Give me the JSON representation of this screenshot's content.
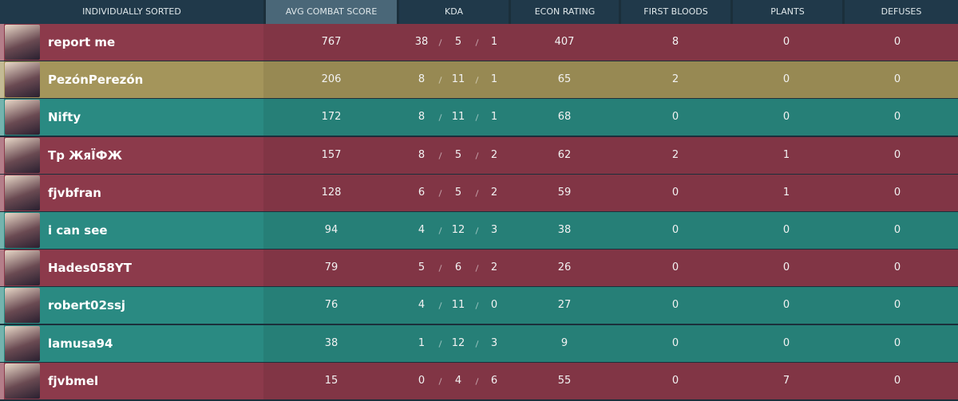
{
  "header": [
    "INDIVIDUALLY SORTED",
    "AVG COMBAT SCORE",
    "KDA",
    "ECON RATING",
    "FIRST BLOODS",
    "PLANTS",
    "DEFUSES"
  ],
  "rows": [
    {
      "player": "report me",
      "acs": 767,
      "kills": 38,
      "deaths": 5,
      "assists": 1,
      "econ": 407,
      "first_bloods": 8,
      "plants": 0,
      "defuses": 0,
      "color": "#8c3a4b"
    },
    {
      "player": "PezónPerezón",
      "acs": 206,
      "kills": 8,
      "deaths": 11,
      "assists": 1,
      "econ": 65,
      "first_bloods": 2,
      "plants": 0,
      "defuses": 0,
      "color": "#a4955b"
    },
    {
      "player": "Nifty",
      "acs": 172,
      "kills": 8,
      "deaths": 11,
      "assists": 1,
      "econ": 68,
      "first_bloods": 0,
      "plants": 0,
      "defuses": 0,
      "color": "#2a8a82"
    },
    {
      "player": "Tp ЖяЇФЖ",
      "acs": 157,
      "kills": 8,
      "deaths": 5,
      "assists": 2,
      "econ": 62,
      "first_bloods": 2,
      "plants": 1,
      "defuses": 0,
      "color": "#8c3a4b"
    },
    {
      "player": "fjvbfran",
      "acs": 128,
      "kills": 6,
      "deaths": 5,
      "assists": 2,
      "econ": 59,
      "first_bloods": 0,
      "plants": 1,
      "defuses": 0,
      "color": "#8c3a4b"
    },
    {
      "player": "i can see",
      "acs": 94,
      "kills": 4,
      "deaths": 12,
      "assists": 3,
      "econ": 38,
      "first_bloods": 0,
      "plants": 0,
      "defuses": 0,
      "color": "#2a8a82"
    },
    {
      "player": "Hades058YT",
      "acs": 79,
      "kills": 5,
      "deaths": 6,
      "assists": 2,
      "econ": 26,
      "first_bloods": 0,
      "plants": 0,
      "defuses": 0,
      "color": "#8c3a4b"
    },
    {
      "player": "robert02ssj",
      "acs": 76,
      "kills": 4,
      "deaths": 11,
      "assists": 0,
      "econ": 27,
      "first_bloods": 0,
      "plants": 0,
      "defuses": 0,
      "color": "#2a8a82"
    },
    {
      "player": "lamusa94",
      "acs": 38,
      "kills": 1,
      "deaths": 12,
      "assists": 3,
      "econ": 9,
      "first_bloods": 0,
      "plants": 0,
      "defuses": 0,
      "color": "#2a8a82"
    },
    {
      "player": "fjvbmel",
      "acs": 15,
      "kills": 0,
      "deaths": 4,
      "assists": 6,
      "econ": 55,
      "first_bloods": 0,
      "plants": 7,
      "defuses": 0,
      "color": "#8c3a4b"
    }
  ]
}
